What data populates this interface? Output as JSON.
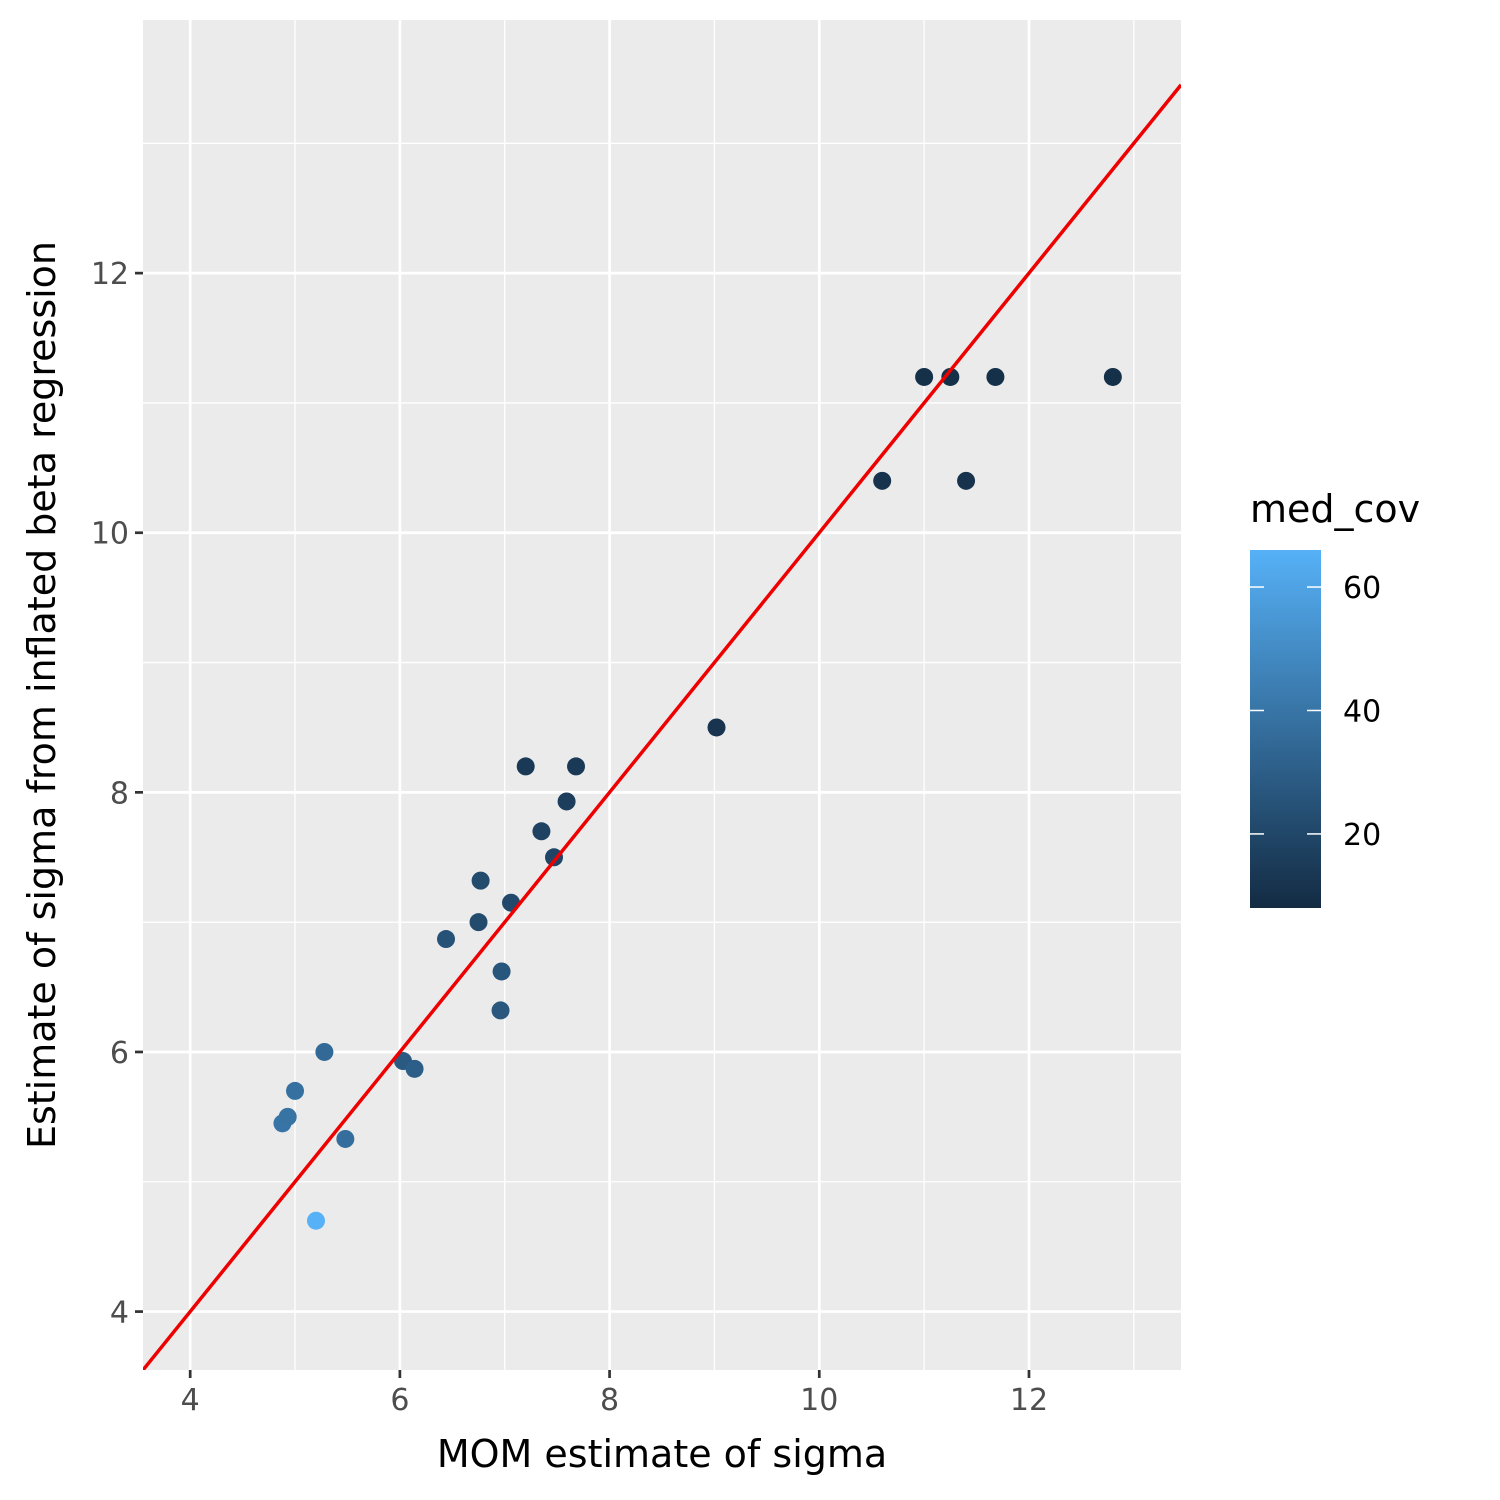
{
  "chart_data": {
    "type": "scatter",
    "xlabel": "MOM estimate of sigma",
    "ylabel": "Estimate of sigma from inflated beta regression",
    "xlim": [
      3.55,
      13.45
    ],
    "ylim": [
      3.55,
      13.95
    ],
    "x_ticks": [
      4,
      6,
      8,
      10,
      12
    ],
    "x_tick_labels": [
      "4",
      "6",
      "8",
      "10",
      "12"
    ],
    "x_minor_ticks": [
      5,
      7,
      9,
      11,
      13
    ],
    "y_ticks": [
      4,
      6,
      8,
      10,
      12
    ],
    "y_tick_labels": [
      "4",
      "6",
      "8",
      "10",
      "12"
    ],
    "y_minor_ticks": [
      5,
      7,
      9,
      11,
      13
    ],
    "grid": true,
    "reference_line": {
      "type": "identity",
      "slope": 1,
      "intercept": 0,
      "color": "#ee0000"
    },
    "legend": {
      "title": "med_cov",
      "type": "colorbar",
      "range": [
        8,
        66
      ],
      "ticks": [
        20,
        40,
        60
      ],
      "tick_labels": [
        "20",
        "40",
        "60"
      ],
      "low_color": "#132b43",
      "high_color": "#56b1f7",
      "placement": "right"
    },
    "points": [
      {
        "x": 5.2,
        "y": 4.7,
        "med_cov": 66
      },
      {
        "x": 4.88,
        "y": 5.45,
        "med_cov": 40
      },
      {
        "x": 4.93,
        "y": 5.5,
        "med_cov": 39
      },
      {
        "x": 5.0,
        "y": 5.7,
        "med_cov": 38
      },
      {
        "x": 5.28,
        "y": 6.0,
        "med_cov": 35
      },
      {
        "x": 5.48,
        "y": 5.33,
        "med_cov": 37
      },
      {
        "x": 6.03,
        "y": 5.93,
        "med_cov": 28
      },
      {
        "x": 6.14,
        "y": 5.87,
        "med_cov": 30
      },
      {
        "x": 6.44,
        "y": 6.87,
        "med_cov": 25
      },
      {
        "x": 6.75,
        "y": 7.0,
        "med_cov": 22
      },
      {
        "x": 6.77,
        "y": 7.32,
        "med_cov": 22
      },
      {
        "x": 6.96,
        "y": 6.32,
        "med_cov": 27
      },
      {
        "x": 6.97,
        "y": 6.62,
        "med_cov": 26
      },
      {
        "x": 7.06,
        "y": 7.15,
        "med_cov": 21
      },
      {
        "x": 7.2,
        "y": 8.2,
        "med_cov": 14
      },
      {
        "x": 7.35,
        "y": 7.7,
        "med_cov": 18
      },
      {
        "x": 7.47,
        "y": 7.5,
        "med_cov": 19
      },
      {
        "x": 7.59,
        "y": 7.93,
        "med_cov": 16
      },
      {
        "x": 7.68,
        "y": 8.2,
        "med_cov": 14
      },
      {
        "x": 9.02,
        "y": 8.5,
        "med_cov": 12
      },
      {
        "x": 10.6,
        "y": 10.4,
        "med_cov": 11
      },
      {
        "x": 11.0,
        "y": 11.2,
        "med_cov": 10
      },
      {
        "x": 11.25,
        "y": 11.2,
        "med_cov": 10
      },
      {
        "x": 11.4,
        "y": 10.4,
        "med_cov": 11
      },
      {
        "x": 11.68,
        "y": 11.2,
        "med_cov": 10
      },
      {
        "x": 12.8,
        "y": 11.2,
        "med_cov": 10
      }
    ]
  },
  "colors": {
    "panel_background": "#ebebeb",
    "grid_major": "#ffffff",
    "grid_minor": "#ffffff",
    "tick_mark": "#333333"
  }
}
